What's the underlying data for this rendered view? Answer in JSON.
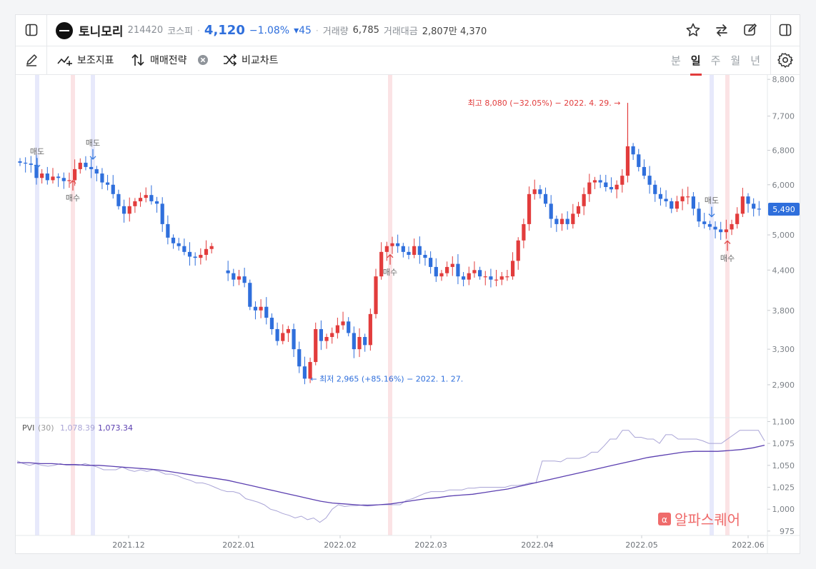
{
  "header": {
    "stock_name": "토니모리",
    "stock_code": "214420",
    "market": "코스피",
    "price": "4,120",
    "change_pct": "−1.08%",
    "change_abs": "▾45",
    "volume_label": "거래량",
    "volume": "6,785",
    "amount_label": "거래대금",
    "amount": "2,807만 4,370"
  },
  "toolbar": {
    "indicators_label": "보조지표",
    "strategy_label": "매매전략",
    "compare_label": "비교차트",
    "periods": [
      "분",
      "일",
      "주",
      "월",
      "년"
    ],
    "active_period": "일"
  },
  "icons": {
    "sidebar_left": "panel-left-icon",
    "star": "star-icon",
    "swap": "swap-arrows-icon",
    "edit": "edit-icon",
    "sidebar_right": "panel-right-icon",
    "pen": "pen-icon",
    "settings": "gear-icon"
  },
  "colors": {
    "up": "#e23c3c",
    "down": "#2f6fdc",
    "pvi": "#a9a4d6",
    "pvi_signal": "#5b3fb0",
    "buy_band": "#fbe3e5",
    "sell_band": "#e7e9fb"
  },
  "watermark": "알파스퀘어",
  "chart_data": [
    {
      "type": "candlestick",
      "title": "",
      "x_ticks": [
        "2021.12",
        "2022.01",
        "2022.02",
        "2022.03",
        "2022.04",
        "2022.05",
        "2022.06"
      ],
      "y_ticks": [
        "2,900",
        "3,300",
        "3,800",
        "4,400",
        "5,000",
        "6,000",
        "6,800",
        "7,700",
        "8,800"
      ],
      "y_tick_values": [
        2900,
        3300,
        3800,
        4400,
        5000,
        6000,
        6800,
        7700,
        8800
      ],
      "ylim": [
        2600,
        8850
      ],
      "scale": "log",
      "last_price_label": "5,490",
      "last_price": 5490,
      "annotations": {
        "high": {
          "text": "최고 8,080 (−32.05%) − 2022. 4. 29.",
          "value": 8080
        },
        "low": {
          "text": "최저 2,965 (+85.16%) − 2022. 1. 27.",
          "value": 2965
        }
      },
      "signal_labels": {
        "buy": "매수",
        "sell": "매도"
      },
      "closes": [
        6500,
        6480,
        6450,
        6150,
        6250,
        6100,
        6180,
        6150,
        6080,
        6100,
        6350,
        6500,
        6400,
        6350,
        6250,
        6050,
        6000,
        5800,
        5550,
        5400,
        5550,
        5650,
        5720,
        5780,
        5650,
        5600,
        5200,
        4950,
        4850,
        4800,
        4700,
        4620,
        4600,
        4650,
        4750,
        4800,
        null,
        null,
        4350,
        4250,
        4300,
        4200,
        3850,
        3800,
        3850,
        3700,
        3550,
        3400,
        3500,
        3550,
        3300,
        3100,
        2965,
        3150,
        3550,
        3400,
        3450,
        3500,
        3600,
        3650,
        3500,
        3300,
        3450,
        3350,
        3750,
        4300,
        4700,
        4800,
        4850,
        4800,
        4700,
        4650,
        4800,
        4650,
        4600,
        4450,
        4300,
        4350,
        4450,
        4500,
        4300,
        4250,
        4350,
        4400,
        4300,
        4300,
        4250,
        4250,
        4300,
        4300,
        4550,
        4900,
        5200,
        5800,
        5900,
        5800,
        5600,
        5300,
        5200,
        5300,
        5200,
        5400,
        5550,
        5800,
        6050,
        6100,
        6050,
        5950,
        5900,
        6000,
        6200,
        6900,
        6700,
        6400,
        6200,
        6000,
        5800,
        5700,
        5650,
        5500,
        5650,
        5750,
        5750,
        5500,
        5250,
        5200,
        5150,
        5100,
        5050,
        5100,
        5200,
        5400,
        5750,
        5600,
        5500,
        5490
      ],
      "buy_signals": [
        "2021.11 (near)",
        "2022.02 (mid)",
        "2022.05 (late)"
      ],
      "sell_signals": [
        "2021.11 (early)",
        "2021.11 (mid)",
        "2022.05 (late)"
      ]
    },
    {
      "type": "line",
      "title": "PVI (30)",
      "indicator_name": "PVI",
      "period_label": "(30)",
      "series": [
        {
          "name": "1,078.39",
          "values": [
            1055,
            1052,
            1050,
            1052,
            1050,
            1049,
            1050,
            1052,
            1050,
            1050,
            1050,
            1052,
            1050,
            1048,
            1045,
            1045,
            1045,
            1048,
            1045,
            1043,
            1045,
            1043,
            1045,
            1043,
            1040,
            1040,
            1038,
            1035,
            1033,
            1030,
            1030,
            1028,
            1025,
            1022,
            1020,
            1020,
            1018,
            1012,
            1010,
            1008,
            1005,
            1000,
            998,
            995,
            993,
            990,
            992,
            988,
            990,
            985,
            990,
            1000,
            1005,
            1003,
            1004,
            1004,
            1005,
            1005,
            1005,
            1005,
            1005,
            1005,
            1005,
            1010,
            1012,
            1015,
            1018,
            1020,
            1020,
            1020,
            1022,
            1022,
            1022,
            1024,
            1024,
            1025,
            1025,
            1025,
            1025,
            1025,
            1027,
            1027,
            1028,
            1030,
            1030,
            1055,
            1055,
            1055,
            1054,
            1058,
            1058,
            1058,
            1060,
            1065,
            1065,
            1072,
            1080,
            1080,
            1090,
            1090,
            1082,
            1082,
            1080,
            1080,
            1075,
            1085,
            1085,
            1080,
            1080,
            1080,
            1080,
            1078,
            1075,
            1075,
            1075,
            1080,
            1085,
            1090,
            1090,
            1090,
            1090,
            1078
          ]
        },
        {
          "name": "1,073.34",
          "values": [
            1053,
            1053,
            1052,
            1052,
            1051,
            1051,
            1050,
            1050,
            1049,
            1048,
            1047,
            1046,
            1045,
            1043,
            1041,
            1039,
            1037,
            1035,
            1033,
            1030,
            1027,
            1024,
            1021,
            1018,
            1015,
            1012,
            1009,
            1007,
            1006,
            1005,
            1004,
            1005,
            1006,
            1008,
            1010,
            1012,
            1013,
            1015,
            1016,
            1017,
            1019,
            1021,
            1023,
            1026,
            1029,
            1032,
            1035,
            1038,
            1041,
            1044,
            1047,
            1050,
            1053,
            1056,
            1059,
            1061,
            1063,
            1065,
            1066,
            1066,
            1066,
            1067,
            1068,
            1070,
            1073
          ]
        }
      ],
      "y_ticks": [
        "975",
        "1,000",
        "1,025",
        "1,050",
        "1,075",
        "1,100"
      ],
      "y_tick_values": [
        975,
        1000,
        1025,
        1050,
        1075,
        1100
      ],
      "ylim": [
        970,
        1102
      ]
    }
  ]
}
